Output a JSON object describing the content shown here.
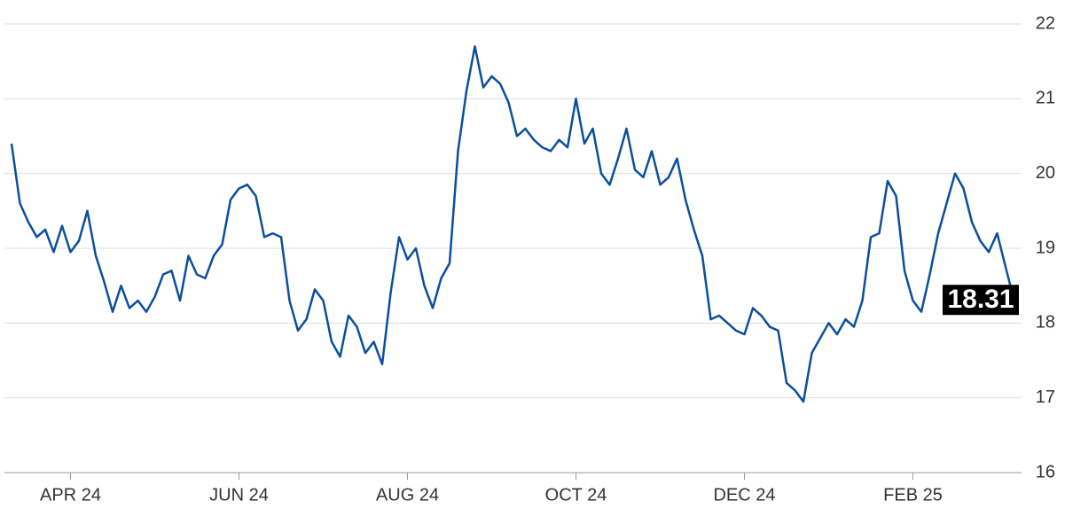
{
  "chart_data": {
    "type": "line",
    "categories": [
      null,
      null,
      null,
      null,
      null,
      null,
      null,
      "APR 24",
      null,
      null,
      null,
      null,
      null,
      null,
      null,
      null,
      null,
      null,
      null,
      null,
      null,
      null,
      null,
      null,
      null,
      null,
      null,
      "JUN 24",
      null,
      null,
      null,
      null,
      null,
      null,
      null,
      null,
      null,
      null,
      null,
      null,
      null,
      null,
      null,
      null,
      null,
      null,
      null,
      "AUG 24",
      null,
      null,
      null,
      null,
      null,
      null,
      null,
      null,
      null,
      null,
      null,
      null,
      null,
      null,
      null,
      null,
      null,
      null,
      null,
      "OCT 24",
      null,
      null,
      null,
      null,
      null,
      null,
      null,
      null,
      null,
      null,
      null,
      null,
      null,
      null,
      null,
      null,
      null,
      null,
      null,
      "DEC 24",
      null,
      null,
      null,
      null,
      null,
      null,
      null,
      null,
      null,
      null,
      null,
      null,
      null,
      null,
      null,
      null,
      null,
      null,
      null,
      "FEB 25",
      null,
      null,
      null,
      null,
      null,
      null,
      null,
      null,
      null,
      null,
      null,
      null
    ],
    "series": [
      {
        "color": "#0b4f9c",
        "values": [
          20.4,
          19.6,
          19.35,
          19.15,
          19.25,
          18.95,
          19.3,
          18.95,
          19.1,
          19.5,
          18.9,
          18.55,
          18.15,
          18.5,
          18.2,
          18.3,
          18.15,
          18.35,
          18.65,
          18.7,
          18.3,
          18.9,
          18.65,
          18.6,
          18.9,
          19.05,
          19.65,
          19.8,
          19.85,
          19.7,
          19.15,
          19.2,
          19.15,
          18.3,
          17.9,
          18.05,
          18.45,
          18.3,
          17.75,
          17.55,
          18.1,
          17.95,
          17.6,
          17.75,
          17.45,
          18.4,
          19.15,
          18.85,
          19.0,
          18.5,
          18.2,
          18.6,
          18.8,
          20.3,
          21.1,
          21.7,
          21.15,
          21.3,
          21.2,
          20.95,
          20.5,
          20.6,
          20.45,
          20.35,
          20.3,
          20.45,
          20.35,
          21.0,
          20.4,
          20.6,
          20.0,
          19.85,
          20.2,
          20.6,
          20.05,
          19.95,
          20.3,
          19.85,
          19.95,
          20.2,
          19.65,
          19.25,
          18.9,
          18.05,
          18.1,
          18.0,
          17.9,
          17.85,
          18.2,
          18.1,
          17.95,
          17.9,
          17.2,
          17.1,
          16.95,
          17.6,
          17.8,
          18.0,
          17.85,
          18.05,
          17.95,
          18.3,
          19.15,
          19.2,
          19.9,
          19.7,
          18.7,
          18.3,
          18.15,
          18.65,
          19.2,
          19.6,
          20.0,
          19.8,
          19.35,
          19.1,
          18.95,
          19.2,
          18.75,
          18.31
        ]
      }
    ],
    "ylim": [
      16,
      22
    ],
    "yticks": [
      16,
      17,
      18,
      19,
      20,
      21,
      22
    ],
    "grid": true
  }
}
